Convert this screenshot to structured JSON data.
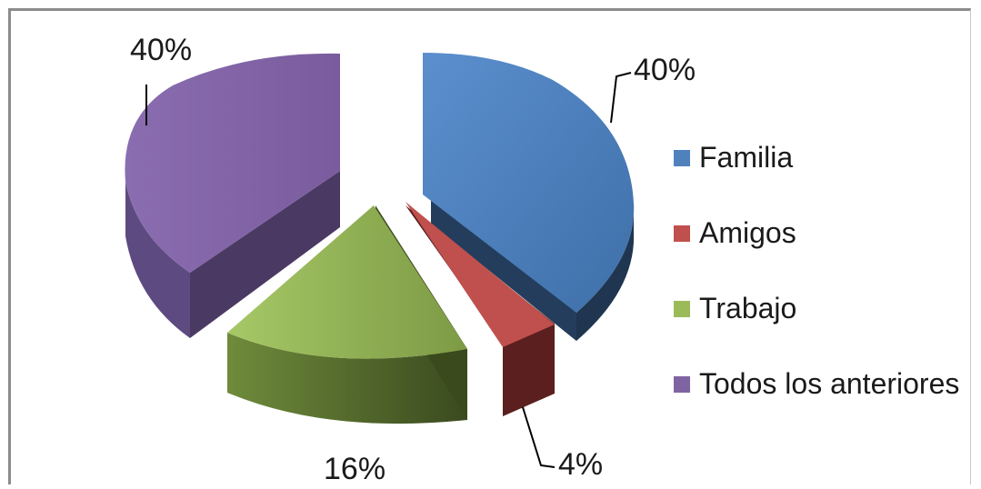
{
  "chart_data": {
    "type": "pie",
    "title": "",
    "categories": [
      "Familia",
      "Amigos",
      "Trabajo",
      "Todos los anteriores"
    ],
    "values": [
      40,
      4,
      16,
      40
    ],
    "labels": [
      "40%",
      "4%",
      "16%",
      "40%"
    ],
    "colors": [
      "#4f81bd",
      "#c0504d",
      "#9bbb59",
      "#8064a2"
    ],
    "dark_colors": [
      "#1f3550",
      "#5a1f1e",
      "#46572a",
      "#4a3a63"
    ],
    "exploded": true,
    "three_d": true,
    "legend_position": "right"
  }
}
